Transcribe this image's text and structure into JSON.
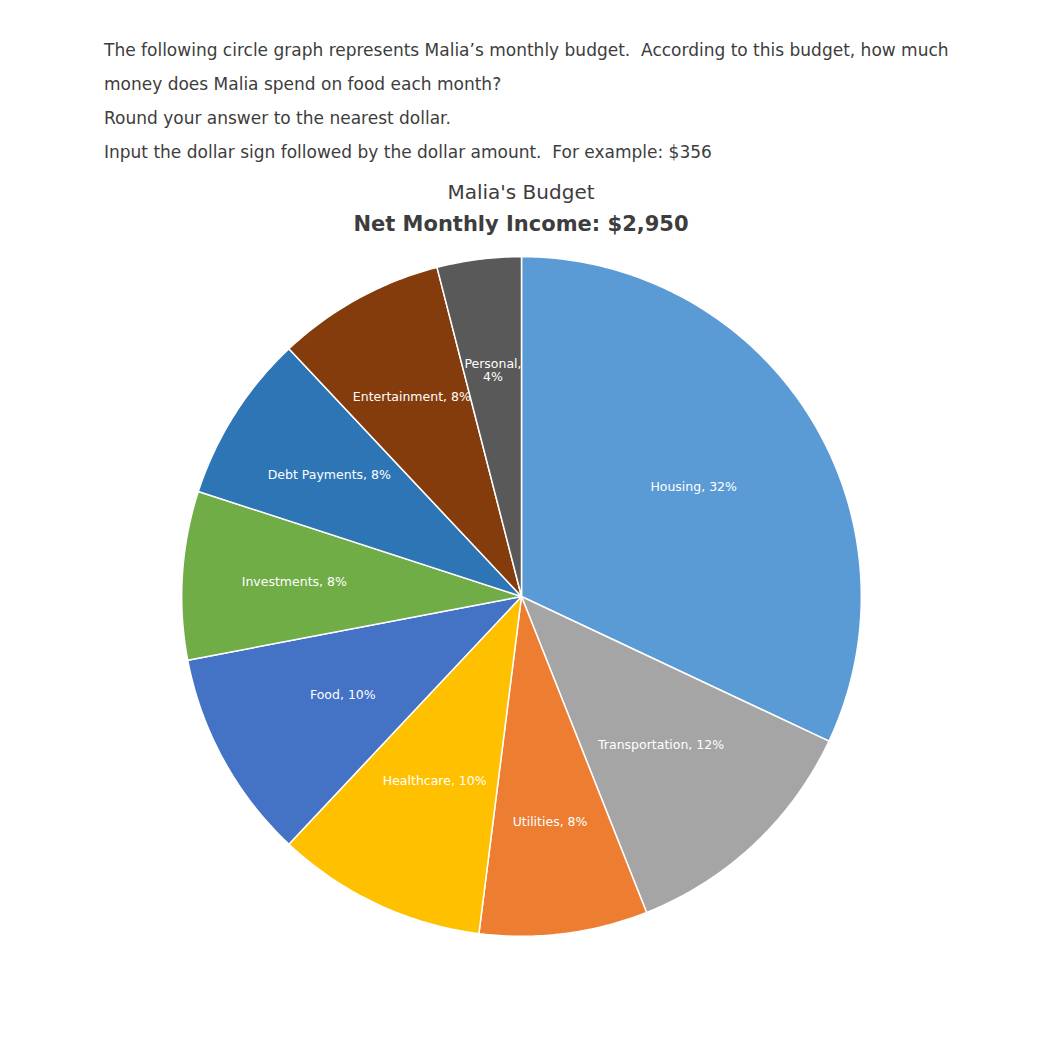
{
  "chart_data": {
    "type": "pie",
    "title": "Malia's Budget",
    "subtitle": "Net Monthly Income: $2,950",
    "annotations": [
      "The following circle graph represents Malia’s monthly budget.  According to this budget, how much",
      "money does Malia spend on food each month?",
      "Round your answer to the nearest dollar.",
      "Input the dollar sign followed by the dollar amount.  For example: $356"
    ],
    "values": [
      32,
      12,
      8,
      10,
      10,
      8,
      8,
      8,
      4
    ],
    "value_labels": [
      "Housing, 32%",
      "Transportation, 12%",
      "Utilities, 8%",
      "Healthcare, 10%",
      "Food, 10%",
      "Investments, 8%",
      "Debt Payments, 8%",
      "Entertainment, 8%",
      "Personal,\n4%"
    ],
    "colors": [
      "#5B9BD5",
      "#A5A5A5",
      "#ED7D31",
      "#FFC000",
      "#4472C4",
      "#70AD47",
      "#2E75B6",
      "#843C0C",
      "#595959"
    ],
    "data_labels": true
  }
}
